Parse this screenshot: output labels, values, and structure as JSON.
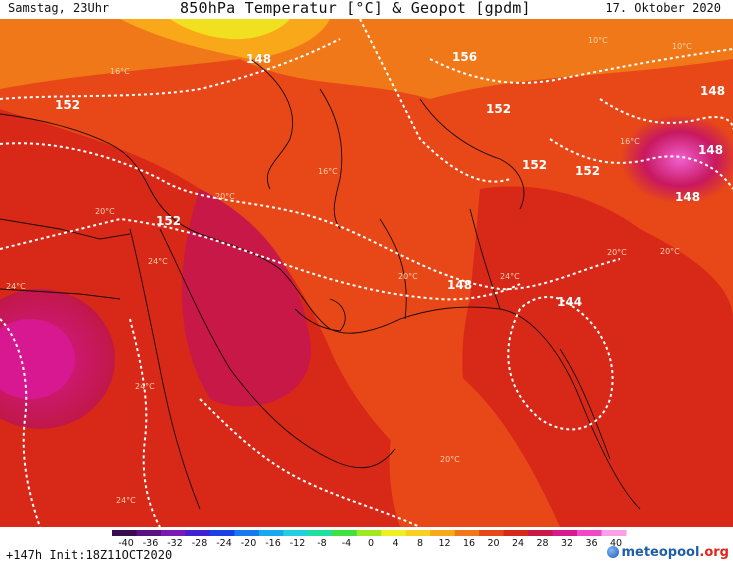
{
  "header": {
    "left": "Samstag, 23Uhr",
    "title": "850hPa Temperatur [°C] & Geopot [gpdm]",
    "date": "17. Oktober 2020"
  },
  "contour_labels": [
    "148",
    "156",
    "152",
    "152",
    "152",
    "152",
    "148",
    "148",
    "148",
    "148",
    "144",
    "152"
  ],
  "temp_labels": [
    "24°C",
    "24°C",
    "24°C",
    "24°C",
    "24°C",
    "20°C",
    "20°C",
    "20°C",
    "20°C",
    "20°C",
    "16°C",
    "16°C",
    "16°C",
    "20°C",
    "10°C",
    "10°C"
  ],
  "colorbar": {
    "ticks": [
      "-40",
      "-36",
      "-32",
      "-28",
      "-24",
      "-20",
      "-16",
      "-12",
      "-8",
      "-4",
      "0",
      "4",
      "8",
      "12",
      "16",
      "20",
      "24",
      "28",
      "32",
      "36",
      "40"
    ],
    "colors": [
      "#3a0a50",
      "#5a1080",
      "#7a18b8",
      "#4020d0",
      "#1840e8",
      "#1878f0",
      "#18a8f0",
      "#20d0e0",
      "#20e0a0",
      "#40e040",
      "#a0e820",
      "#f0f020",
      "#f8d020",
      "#f8a818",
      "#f07818",
      "#e84818",
      "#d82818",
      "#c81848",
      "#d81890",
      "#f048c8",
      "#f8a0e8"
    ]
  },
  "footer": {
    "run": "+147h Init:18Z11OCT2020",
    "logo_main": "meteopool",
    "logo_suffix": ".org"
  }
}
